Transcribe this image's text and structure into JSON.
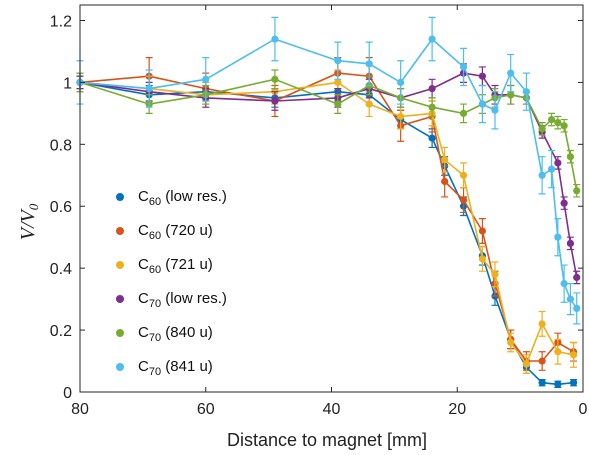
{
  "chart_data": {
    "type": "line",
    "xlabel": "Distance to magnet [mm]",
    "ylabel": "V/V0",
    "ylabel_parts": {
      "main": "V/V",
      "sub": "0"
    },
    "xlim": [
      80,
      0
    ],
    "ylim": [
      0,
      1.25
    ],
    "x_reversed": true,
    "xticks": [
      80,
      60,
      40,
      20,
      0
    ],
    "xtick_labels": [
      "80",
      "60",
      "40",
      "20",
      "0"
    ],
    "yticks": [
      0,
      0.2,
      0.4,
      0.6,
      0.8,
      1,
      1.2
    ],
    "ytick_labels": [
      "0",
      "0.2",
      "0.4",
      "0.6",
      "0.8",
      "1",
      "1.2"
    ],
    "grid": false,
    "legend_position": "lower-left",
    "series": [
      {
        "name": "C60 (low res.)",
        "label_main": "C",
        "label_sub": "60",
        "label_rest": " (low res.)",
        "color": "#0072BD",
        "points": [
          [
            80,
            1.0,
            0.02
          ],
          [
            69,
            0.96,
            0.03
          ],
          [
            60,
            0.97,
            0.03
          ],
          [
            49,
            0.95,
            0.03
          ],
          [
            39,
            0.97,
            0.03
          ],
          [
            34,
            0.96,
            0.03
          ],
          [
            29,
            0.88,
            0.03
          ],
          [
            24,
            0.82,
            0.03
          ],
          [
            22,
            0.73,
            0.03
          ],
          [
            19,
            0.6,
            0.03
          ],
          [
            16,
            0.44,
            0.03
          ],
          [
            14,
            0.31,
            0.03
          ],
          [
            11.5,
            0.17,
            0.03
          ],
          [
            9,
            0.08,
            0.02
          ],
          [
            6.5,
            0.03,
            0.01
          ],
          [
            4,
            0.025,
            0.01
          ],
          [
            1.5,
            0.03,
            0.01
          ]
        ]
      },
      {
        "name": "C60 (720 u)",
        "label_main": "C",
        "label_sub": "60",
        "label_rest": " (720 u)",
        "color": "#D95319",
        "points": [
          [
            80,
            1.0,
            0.03
          ],
          [
            69,
            1.02,
            0.06
          ],
          [
            60,
            0.98,
            0.05
          ],
          [
            49,
            0.94,
            0.05
          ],
          [
            39,
            1.03,
            0.05
          ],
          [
            34,
            1.02,
            0.06
          ],
          [
            29,
            0.86,
            0.05
          ],
          [
            24,
            0.89,
            0.05
          ],
          [
            22,
            0.68,
            0.05
          ],
          [
            19,
            0.62,
            0.04
          ],
          [
            16,
            0.52,
            0.04
          ],
          [
            14,
            0.35,
            0.04
          ],
          [
            11.5,
            0.17,
            0.03
          ],
          [
            9,
            0.1,
            0.03
          ],
          [
            6.5,
            0.1,
            0.03
          ],
          [
            4,
            0.16,
            0.03
          ],
          [
            1.5,
            0.13,
            0.03
          ]
        ]
      },
      {
        "name": "C60 (721 u)",
        "label_main": "C",
        "label_sub": "60",
        "label_rest": " (721 u)",
        "color": "#EDB120",
        "points": [
          [
            80,
            1.0,
            0.03
          ],
          [
            69,
            0.98,
            0.04
          ],
          [
            60,
            0.96,
            0.04
          ],
          [
            49,
            0.97,
            0.04
          ],
          [
            39,
            1.0,
            0.04
          ],
          [
            34,
            0.93,
            0.04
          ],
          [
            29,
            0.89,
            0.04
          ],
          [
            24,
            0.9,
            0.04
          ],
          [
            22,
            0.75,
            0.04
          ],
          [
            19,
            0.7,
            0.04
          ],
          [
            16,
            0.43,
            0.04
          ],
          [
            14,
            0.38,
            0.04
          ],
          [
            11.5,
            0.16,
            0.03
          ],
          [
            9,
            0.09,
            0.03
          ],
          [
            6.5,
            0.22,
            0.04
          ],
          [
            4,
            0.13,
            0.04
          ],
          [
            1.5,
            0.12,
            0.04
          ]
        ]
      },
      {
        "name": "C70 (low res.)",
        "label_main": "C",
        "label_sub": "70",
        "label_rest": " (low res.)",
        "color": "#7E2F8E",
        "points": [
          [
            80,
            1.0,
            0.02
          ],
          [
            69,
            0.97,
            0.03
          ],
          [
            60,
            0.95,
            0.03
          ],
          [
            49,
            0.94,
            0.03
          ],
          [
            39,
            0.95,
            0.03
          ],
          [
            34,
            0.98,
            0.03
          ],
          [
            29,
            0.95,
            0.03
          ],
          [
            24,
            0.98,
            0.03
          ],
          [
            19,
            1.03,
            0.03
          ],
          [
            16,
            1.02,
            0.03
          ],
          [
            14,
            0.96,
            0.03
          ],
          [
            11.5,
            0.96,
            0.03
          ],
          [
            9,
            0.95,
            0.02
          ],
          [
            6.5,
            0.84,
            0.02
          ],
          [
            4,
            0.74,
            0.02
          ],
          [
            3,
            0.61,
            0.02
          ],
          [
            2,
            0.48,
            0.02
          ],
          [
            1,
            0.37,
            0.02
          ]
        ]
      },
      {
        "name": "C70 (840 u)",
        "label_main": "C",
        "label_sub": "70",
        "label_rest": " (840 u)",
        "color": "#77AC30",
        "points": [
          [
            80,
            1.0,
            0.03
          ],
          [
            69,
            0.93,
            0.03
          ],
          [
            60,
            0.96,
            0.03
          ],
          [
            49,
            1.01,
            0.03
          ],
          [
            39,
            0.93,
            0.03
          ],
          [
            34,
            0.99,
            0.03
          ],
          [
            29,
            0.95,
            0.03
          ],
          [
            24,
            0.92,
            0.03
          ],
          [
            19,
            0.9,
            0.03
          ],
          [
            16,
            0.93,
            0.03
          ],
          [
            14,
            0.95,
            0.03
          ],
          [
            11.5,
            0.96,
            0.03
          ],
          [
            9,
            0.95,
            0.02
          ],
          [
            6.5,
            0.85,
            0.02
          ],
          [
            5,
            0.88,
            0.02
          ],
          [
            4,
            0.87,
            0.02
          ],
          [
            3,
            0.86,
            0.02
          ],
          [
            2,
            0.76,
            0.02
          ],
          [
            1,
            0.65,
            0.02
          ]
        ]
      },
      {
        "name": "C70 (841 u)",
        "label_main": "C",
        "label_sub": "70",
        "label_rest": " (841 u)",
        "color": "#4DBEEE",
        "points": [
          [
            80,
            1.0,
            0.07
          ],
          [
            69,
            0.98,
            0.06
          ],
          [
            60,
            1.01,
            0.07
          ],
          [
            49,
            1.14,
            0.07
          ],
          [
            39,
            1.07,
            0.06
          ],
          [
            34,
            1.06,
            0.07
          ],
          [
            29,
            1.0,
            0.07
          ],
          [
            24,
            1.14,
            0.07
          ],
          [
            19,
            1.05,
            0.06
          ],
          [
            16,
            0.93,
            0.06
          ],
          [
            14,
            0.91,
            0.06
          ],
          [
            11.5,
            1.03,
            0.06
          ],
          [
            9,
            0.97,
            0.06
          ],
          [
            6.5,
            0.7,
            0.06
          ],
          [
            5,
            0.72,
            0.06
          ],
          [
            4,
            0.5,
            0.06
          ],
          [
            3,
            0.35,
            0.06
          ],
          [
            2,
            0.3,
            0.05
          ],
          [
            1,
            0.27,
            0.05
          ]
        ]
      }
    ]
  }
}
